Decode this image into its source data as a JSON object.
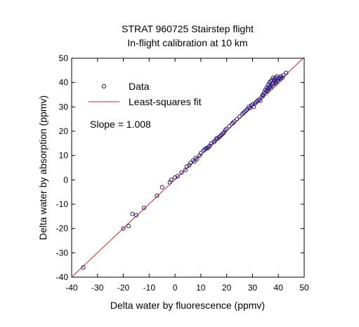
{
  "chart_data": {
    "type": "scatter",
    "title": [
      "STRAT 960725 Stairstep flight",
      "In-flight calibration at 10 km"
    ],
    "xlabel": "Delta water by fluorescence (ppmv)",
    "ylabel": "Delta water by absorption (ppmv)",
    "xlim": [
      -40,
      50
    ],
    "ylim": [
      -40,
      50
    ],
    "xticks": [
      -40,
      -30,
      -20,
      -10,
      0,
      10,
      20,
      30,
      40,
      50
    ],
    "yticks": [
      -40,
      -30,
      -20,
      -10,
      0,
      10,
      20,
      30,
      40,
      50
    ],
    "grid": false,
    "legend_position": "top-left",
    "colors": {
      "data": "#2a1a7a",
      "fit": "#e02020"
    },
    "series": [
      {
        "name": "Data",
        "marker": "open-circle",
        "points": [
          [
            -35.5,
            -36
          ],
          [
            -20,
            -20
          ],
          [
            -18,
            -19
          ],
          [
            -16.5,
            -14
          ],
          [
            -15,
            -14.5
          ],
          [
            -12,
            -11.5
          ],
          [
            -7,
            -6.5
          ],
          [
            -5,
            -3
          ],
          [
            -2,
            -1
          ],
          [
            -1.5,
            0
          ],
          [
            0,
            1
          ],
          [
            1,
            1.5
          ],
          [
            2.5,
            3
          ],
          [
            4,
            4
          ],
          [
            4.5,
            5.5
          ],
          [
            5.5,
            6
          ],
          [
            6,
            7
          ],
          [
            7,
            8
          ],
          [
            7.5,
            7.5
          ],
          [
            8.5,
            8.5
          ],
          [
            9.5,
            10
          ],
          [
            10,
            11
          ],
          [
            11,
            12
          ],
          [
            11.5,
            12.5
          ],
          [
            12,
            13
          ],
          [
            13,
            13.5
          ],
          [
            13.5,
            14
          ],
          [
            14,
            15
          ],
          [
            15,
            15.5
          ],
          [
            15.5,
            16
          ],
          [
            16,
            17
          ],
          [
            17,
            17.5
          ],
          [
            17.5,
            18
          ],
          [
            18,
            18.5
          ],
          [
            19,
            19.5
          ],
          [
            19.5,
            20.5
          ],
          [
            20,
            21
          ],
          [
            21,
            22
          ],
          [
            22,
            23
          ],
          [
            23,
            24
          ],
          [
            24,
            25
          ],
          [
            25,
            26
          ],
          [
            26,
            27
          ],
          [
            26.5,
            27.5
          ],
          [
            27,
            28
          ],
          [
            27.5,
            28.5
          ],
          [
            28,
            29
          ],
          [
            28.5,
            30
          ],
          [
            29,
            29.5
          ],
          [
            29.5,
            30.5
          ],
          [
            30,
            31
          ],
          [
            30.5,
            30
          ],
          [
            31,
            31.5
          ],
          [
            31.5,
            32
          ],
          [
            32,
            32.5
          ],
          [
            33,
            32.5
          ],
          [
            34,
            35
          ],
          [
            34.5,
            36
          ],
          [
            35,
            35.5
          ],
          [
            35,
            37
          ],
          [
            35.5,
            36.5
          ],
          [
            35.5,
            38
          ],
          [
            36,
            37.5
          ],
          [
            36,
            39
          ],
          [
            36.5,
            38
          ],
          [
            36.5,
            40
          ],
          [
            37,
            38.5
          ],
          [
            37,
            40.5
          ],
          [
            37.5,
            39.5
          ],
          [
            37.5,
            41
          ],
          [
            38,
            40
          ],
          [
            38,
            42
          ],
          [
            38.5,
            40.5
          ],
          [
            38.5,
            41.5
          ],
          [
            39,
            40
          ],
          [
            39,
            42
          ],
          [
            39.5,
            41
          ],
          [
            39.5,
            42.5
          ],
          [
            40,
            41.5
          ],
          [
            40,
            40.5
          ],
          [
            40.5,
            42
          ],
          [
            41,
            41.5
          ],
          [
            41,
            42.5
          ],
          [
            41.5,
            42
          ],
          [
            42,
            43
          ],
          [
            43,
            44
          ],
          [
            36,
            36.5
          ],
          [
            37,
            37.5
          ],
          [
            38,
            38.5
          ],
          [
            39,
            39.5
          ],
          [
            34,
            34.5
          ],
          [
            33.5,
            34
          ],
          [
            32.5,
            33
          ],
          [
            22.5,
            23.5
          ],
          [
            18.5,
            19
          ],
          [
            16.5,
            17
          ],
          [
            12.5,
            13
          ],
          [
            8,
            9
          ]
        ]
      },
      {
        "name": "Least-squares fit",
        "line": [
          [
            -40,
            -40
          ],
          [
            50,
            50.4
          ]
        ]
      }
    ],
    "annotations": [
      {
        "text": "Slope = 1.008"
      }
    ]
  }
}
